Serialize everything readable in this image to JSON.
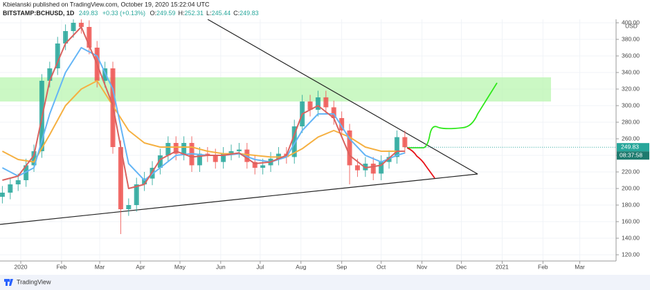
{
  "chart_data": {
    "type": "candlestick",
    "subtitle": "Kbielanski published on TradingView.com, October 19, 2020 15:22:04 UTC",
    "title": "BITSTAMP:BCHUSD, 1D",
    "header_last": "249.83",
    "header_change": "+0.33 (+0.13%)",
    "ohlc_items": [
      {
        "label": "O:",
        "value": "249.59"
      },
      {
        "label": "H:",
        "value": "252.31"
      },
      {
        "label": "L:",
        "value": "245.44"
      },
      {
        "label": "C:",
        "value": "249.83"
      }
    ],
    "currency": "USD",
    "last_price": 249.83,
    "last_price_label": "249.83",
    "countdown": "08:37:58",
    "brand": "TradingView",
    "up_color": "#26a69a",
    "down_color": "#ef5350",
    "grid": true,
    "xlim": [
      -15.8,
      452.6
    ],
    "xticks": [
      {
        "value": 0,
        "label": "2020"
      },
      {
        "value": 31,
        "label": "Feb"
      },
      {
        "value": 60,
        "label": "Mar"
      },
      {
        "value": 91,
        "label": "Apr"
      },
      {
        "value": 121,
        "label": "May"
      },
      {
        "value": 152,
        "label": "Jun"
      },
      {
        "value": 182,
        "label": "Jul"
      },
      {
        "value": 213,
        "label": "Aug"
      },
      {
        "value": 244,
        "label": "Sep"
      },
      {
        "value": 274,
        "label": "Oct"
      },
      {
        "value": 305,
        "label": "Nov"
      },
      {
        "value": 335,
        "label": "Dec"
      },
      {
        "value": 366,
        "label": "2021"
      },
      {
        "value": 397,
        "label": "Feb"
      },
      {
        "value": 425,
        "label": "Mar"
      }
    ],
    "ylim": [
      112,
      404
    ],
    "yticks": [
      {
        "value": 120,
        "label": "120.00"
      },
      {
        "value": 140,
        "label": "140.00"
      },
      {
        "value": 160,
        "label": "160.00"
      },
      {
        "value": 180,
        "label": "180.00"
      },
      {
        "value": 200,
        "label": "200.00"
      },
      {
        "value": 220,
        "label": "220.00"
      },
      {
        "value": 240,
        "label": "240.00"
      },
      {
        "value": 260,
        "label": "260.00"
      },
      {
        "value": 280,
        "label": "280.00"
      },
      {
        "value": 300,
        "label": "300.00"
      },
      {
        "value": 320,
        "label": "320.00"
      },
      {
        "value": 340,
        "label": "340.00"
      },
      {
        "value": 360,
        "label": "360.00"
      },
      {
        "value": 380,
        "label": "380.00"
      },
      {
        "value": 400,
        "label": "400.00"
      }
    ],
    "candles": {
      "x": [
        -14,
        -8,
        -2,
        4,
        10,
        16,
        22,
        28,
        34,
        40,
        46,
        52,
        58,
        64,
        70,
        76,
        82,
        88,
        94,
        100,
        106,
        112,
        118,
        124,
        130,
        136,
        142,
        148,
        154,
        160,
        166,
        172,
        178,
        184,
        190,
        196,
        202,
        208,
        214,
        220,
        226,
        232,
        238,
        244,
        250,
        256,
        262,
        268,
        274,
        280,
        286,
        292
      ],
      "open": [
        190,
        195,
        205,
        210,
        228,
        245,
        330,
        345,
        375,
        390,
        400,
        395,
        370,
        330,
        345,
        250,
        175,
        180,
        205,
        212,
        225,
        240,
        255,
        242,
        255,
        228,
        242,
        240,
        232,
        242,
        245,
        247,
        232,
        225,
        228,
        236,
        242,
        238,
        275,
        305,
        295,
        310,
        298,
        285,
        270,
        228,
        222,
        230,
        218,
        232,
        238,
        262
      ],
      "high": [
        203,
        213,
        218,
        236,
        253,
        338,
        353,
        383,
        398,
        408,
        408,
        403,
        378,
        353,
        353,
        258,
        188,
        213,
        220,
        233,
        248,
        263,
        263,
        263,
        263,
        250,
        250,
        248,
        250,
        253,
        255,
        255,
        240,
        236,
        244,
        250,
        250,
        283,
        313,
        313,
        318,
        318,
        306,
        293,
        278,
        236,
        238,
        238,
        240,
        246,
        270,
        270
      ],
      "low": [
        182,
        187,
        197,
        202,
        220,
        237,
        322,
        337,
        367,
        382,
        387,
        362,
        322,
        322,
        242,
        145,
        167,
        172,
        197,
        204,
        217,
        232,
        234,
        234,
        220,
        220,
        232,
        224,
        224,
        234,
        237,
        224,
        217,
        217,
        220,
        228,
        230,
        230,
        267,
        287,
        287,
        290,
        277,
        262,
        205,
        214,
        214,
        210,
        210,
        224,
        230,
        242
      ],
      "close": [
        195,
        205,
        210,
        228,
        245,
        330,
        345,
        375,
        390,
        400,
        395,
        370,
        330,
        345,
        250,
        175,
        180,
        205,
        212,
        225,
        240,
        255,
        242,
        255,
        228,
        242,
        240,
        232,
        242,
        245,
        247,
        232,
        225,
        228,
        236,
        242,
        238,
        275,
        305,
        295,
        310,
        298,
        285,
        270,
        228,
        222,
        230,
        218,
        232,
        238,
        262,
        249.83
      ]
    },
    "ma_x": [
      -14,
      -2,
      10,
      22,
      34,
      46,
      58,
      70,
      82,
      94,
      106,
      118,
      130,
      142,
      154,
      166,
      178,
      190,
      202,
      214,
      226,
      238,
      250,
      262,
      274,
      286,
      292
    ],
    "series": [
      {
        "color": "#f5b041",
        "values": [
          245,
          235,
          232,
          265,
          300,
          320,
          330,
          300,
          270,
          255,
          250,
          250,
          250,
          245,
          242,
          242,
          240,
          238,
          238,
          248,
          262,
          270,
          262,
          250,
          245,
          245,
          245
        ]
      },
      {
        "color": "#64b5f6",
        "values": [
          225,
          215,
          225,
          290,
          340,
          370,
          360,
          320,
          230,
          210,
          225,
          240,
          242,
          240,
          240,
          242,
          235,
          232,
          238,
          270,
          290,
          290,
          260,
          240,
          232,
          240,
          243
        ]
      },
      {
        "color": "#d9625f",
        "values": [
          210,
          215,
          240,
          330,
          375,
          395,
          350,
          300,
          200,
          205,
          235,
          245,
          238,
          240,
          240,
          243,
          230,
          232,
          240,
          290,
          300,
          285,
          240,
          225,
          228,
          245,
          245
        ]
      }
    ]
  }
}
